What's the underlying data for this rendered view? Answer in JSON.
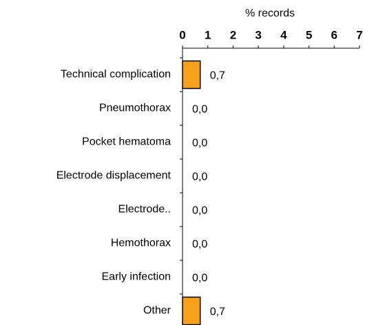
{
  "chart_data": {
    "type": "barh",
    "xlabel": "% records",
    "categories": [
      "Technical complication",
      "Pneumothorax",
      "Pocket hematoma",
      "Electrode displacement",
      "Electrode..",
      "Hemothorax",
      "Early infection",
      "Other"
    ],
    "values": [
      0.7,
      0,
      0,
      0,
      0,
      0,
      0,
      0.7
    ],
    "value_labels": [
      "0,7",
      "0,0",
      "0,0",
      "0,0",
      "0,0",
      "0,0",
      "0,0",
      "0,7"
    ],
    "color": "#f7a11a",
    "xlim": [
      0,
      7
    ],
    "xticks": [
      0,
      1,
      2,
      3,
      4,
      5,
      6,
      7
    ]
  }
}
